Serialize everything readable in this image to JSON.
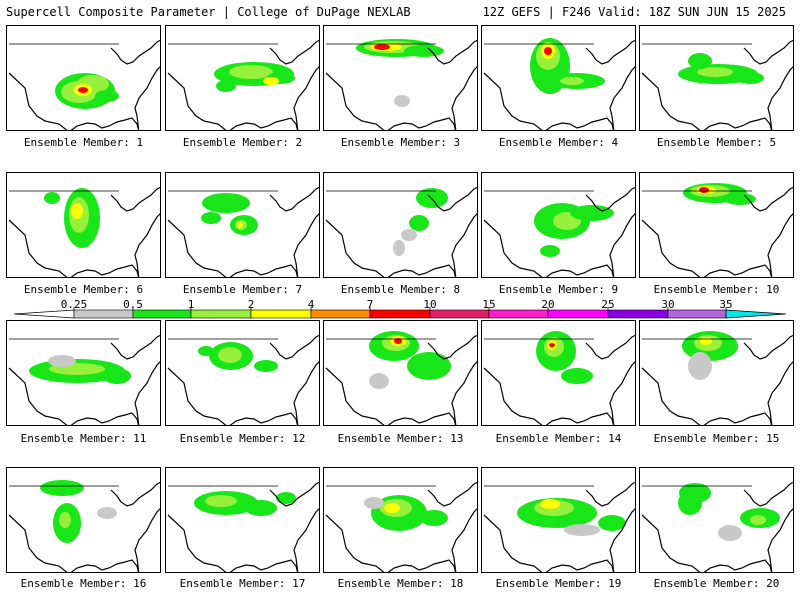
{
  "header": {
    "left": "Supercell Composite Parameter | College of DuPage NEXLAB",
    "right": "12Z GEFS | F246 Valid: 18Z SUN JUN 15 2025"
  },
  "colorbar": {
    "ticks": [
      "0.25",
      "0.5",
      "1",
      "2",
      "4",
      "7",
      "10",
      "15",
      "20",
      "25",
      "30",
      "35"
    ],
    "colors": [
      "#c8c8c8",
      "#19e619",
      "#96f03c",
      "#ffff00",
      "#ff8c00",
      "#ff0000",
      "#e61e64",
      "#ff1ec8",
      "#ff00ff",
      "#8c00e6",
      "#b464dc",
      "#00e6e6"
    ]
  },
  "members": [
    {
      "label": "Ensemble Member: 1"
    },
    {
      "label": "Ensemble Member: 2"
    },
    {
      "label": "Ensemble Member: 3"
    },
    {
      "label": "Ensemble Member: 4"
    },
    {
      "label": "Ensemble Member: 5"
    },
    {
      "label": "Ensemble Member: 6"
    },
    {
      "label": "Ensemble Member: 7"
    },
    {
      "label": "Ensemble Member: 8"
    },
    {
      "label": "Ensemble Member: 9"
    },
    {
      "label": "Ensemble Member: 10"
    },
    {
      "label": "Ensemble Member: 11"
    },
    {
      "label": "Ensemble Member: 12"
    },
    {
      "label": "Ensemble Member: 13"
    },
    {
      "label": "Ensemble Member: 14"
    },
    {
      "label": "Ensemble Member: 15"
    },
    {
      "label": "Ensemble Member: 16"
    },
    {
      "label": "Ensemble Member: 17"
    },
    {
      "label": "Ensemble Member: 18"
    },
    {
      "label": "Ensemble Member: 19"
    },
    {
      "label": "Ensemble Member: 20"
    }
  ]
}
